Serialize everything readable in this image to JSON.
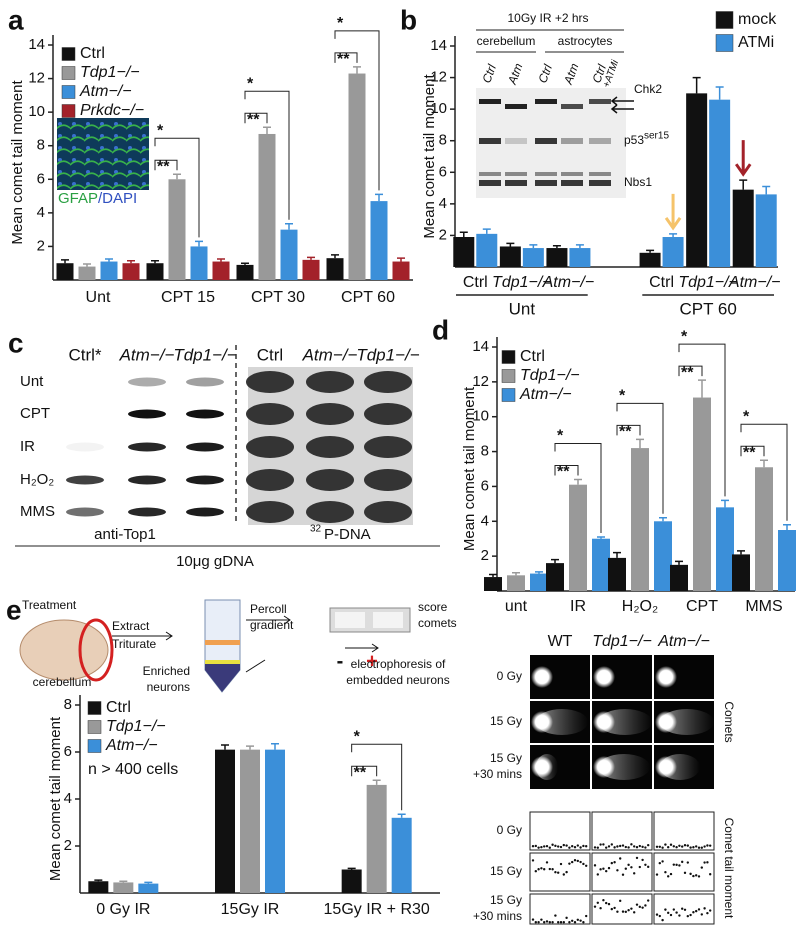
{
  "chart_data": [
    {
      "type": "bar",
      "label": "a",
      "y_label": "Mean comet tail moment",
      "categories": [
        "Unt",
        "CPT 15",
        "CPT 30",
        "CPT 60"
      ],
      "series": [
        {
          "name": "Ctrl",
          "color": "#111111",
          "values": [
            1.0,
            1.0,
            0.9,
            1.3
          ],
          "errors": [
            0.2,
            0.15,
            0.1,
            0.2
          ]
        },
        {
          "name": "Tdp1−/−",
          "color": "#999999",
          "values": [
            0.8,
            6.0,
            8.7,
            12.3
          ],
          "errors": [
            0.15,
            0.3,
            0.4,
            0.4
          ]
        },
        {
          "name": "Atm−/−",
          "color": "#3b8fd9",
          "values": [
            1.1,
            2.0,
            3.0,
            4.7
          ],
          "errors": [
            0.15,
            0.3,
            0.35,
            0.4
          ]
        },
        {
          "name": "Prkdc−/−",
          "color": "#a3222a",
          "values": [
            1.0,
            1.1,
            1.2,
            1.1
          ],
          "errors": [
            0.15,
            0.15,
            0.15,
            0.2
          ]
        }
      ],
      "ylim": [
        0,
        14
      ],
      "yticks": [
        2,
        4,
        6,
        8,
        10,
        12,
        14
      ],
      "significance": [
        null,
        [
          "*",
          "**"
        ],
        [
          "*",
          "**"
        ],
        [
          "*",
          "**"
        ]
      ],
      "inset_label": [
        "GFAP",
        "/DAPI"
      ]
    },
    {
      "type": "bar",
      "label": "b",
      "y_label": "Mean comet tail moment",
      "categories": [
        "Ctrl",
        "Tdp1−/−",
        "Atm−/−",
        "Ctrl",
        "Tdp1−/−",
        "Atm−/−"
      ],
      "group_labels": [
        "Unt",
        "CPT 60"
      ],
      "series": [
        {
          "name": "mock",
          "color": "#111111",
          "values": [
            1.9,
            1.3,
            1.2,
            0.9,
            11.0,
            4.9
          ],
          "errors": [
            0.3,
            0.2,
            0.15,
            0.15,
            1.0,
            0.6
          ]
        },
        {
          "name": "ATMi",
          "color": "#3b8fd9",
          "values": [
            2.1,
            1.2,
            1.2,
            1.9,
            10.6,
            4.6
          ],
          "errors": [
            0.3,
            0.2,
            0.2,
            0.2,
            0.8,
            0.5
          ]
        }
      ],
      "ylim": [
        0,
        14
      ],
      "yticks": [
        2,
        4,
        6,
        8,
        10,
        12,
        14
      ],
      "inset": {
        "title": "10Gy IR +2 hrs",
        "tissues": [
          "cerebellum",
          "astrocytes"
        ],
        "lanes": [
          "Ctrl",
          "Atm",
          "Ctrl",
          "Atm",
          "Ctrl"
        ],
        "lane_extra": "+ATMi",
        "proteins": [
          "Chk2",
          "p53",
          "Nbs1"
        ],
        "protein_sup": "ser15"
      }
    },
    {
      "type": "bar",
      "label": "d",
      "y_label": "Mean comet tail moment",
      "categories": [
        "unt",
        "IR",
        "H₂O₂",
        "CPT",
        "MMS"
      ],
      "series": [
        {
          "name": "Ctrl",
          "color": "#111111",
          "values": [
            0.8,
            1.6,
            1.9,
            1.5,
            2.1
          ],
          "errors": [
            0.15,
            0.2,
            0.3,
            0.2,
            0.2
          ]
        },
        {
          "name": "Tdp1−/−",
          "color": "#999999",
          "values": [
            0.9,
            6.1,
            8.2,
            11.1,
            7.1
          ],
          "errors": [
            0.15,
            0.3,
            0.5,
            1.0,
            0.4
          ]
        },
        {
          "name": "Atm−/−",
          "color": "#3b8fd9",
          "values": [
            1.0,
            3.0,
            4.0,
            4.8,
            3.5
          ],
          "errors": [
            0.1,
            0.1,
            0.2,
            0.4,
            0.3
          ]
        }
      ],
      "ylim": [
        0,
        14
      ],
      "yticks": [
        2,
        4,
        6,
        8,
        10,
        12,
        14
      ],
      "significance": [
        null,
        [
          "*",
          "**"
        ],
        [
          "*",
          "**"
        ],
        [
          "*",
          "**"
        ],
        [
          "*",
          "**"
        ]
      ]
    },
    {
      "type": "bar",
      "label": "e",
      "y_label": "Mean comet tail moment",
      "categories": [
        "0 Gy IR",
        "15Gy IR",
        "15Gy IR + R30"
      ],
      "series": [
        {
          "name": "Ctrl",
          "color": "#111111",
          "values": [
            0.5,
            6.1,
            1.0
          ],
          "errors": [
            0.05,
            0.2,
            0.05
          ]
        },
        {
          "name": "Tdp1−/−",
          "color": "#999999",
          "values": [
            0.45,
            6.1,
            4.6
          ],
          "errors": [
            0.05,
            0.15,
            0.2
          ]
        },
        {
          "name": "Atm−/−",
          "color": "#3b8fd9",
          "values": [
            0.4,
            6.1,
            3.2
          ],
          "errors": [
            0.05,
            0.25,
            0.15
          ]
        }
      ],
      "ylim": [
        0,
        8
      ],
      "yticks": [
        2,
        4,
        6,
        8
      ],
      "significance": [
        null,
        null,
        [
          "*",
          "**"
        ]
      ],
      "note": "n > 400 cells"
    }
  ],
  "panel_c": {
    "label": "c",
    "columns": [
      "Ctrl*",
      "Atm−/−",
      "Tdp1−/−",
      "Ctrl",
      "Atm−/−",
      "Tdp1−/−"
    ],
    "rows": [
      "Unt",
      "CPT",
      "IR",
      "H₂O₂",
      "MMS"
    ],
    "left_caption": "anti-Top1",
    "right_caption": [
      "32",
      "P-DNA"
    ],
    "footer": "10μg gDNA"
  },
  "panel_e_diagram": {
    "treatment": "Treatment",
    "tissue": "cerebellum",
    "extract": [
      "Extract",
      "Triturate"
    ],
    "gradient": [
      "Percoll",
      "gradient"
    ],
    "enriched": [
      "Enriched",
      "neurons"
    ],
    "score": [
      "score",
      "comets"
    ],
    "electrophoresis": [
      "electrophoresis of",
      "embedded neurons"
    ],
    "poles": [
      "-",
      "+"
    ]
  },
  "panel_e_comets": {
    "genotypes": [
      "WT",
      "Tdp1−/−",
      "Atm−/−"
    ],
    "comet_rows": [
      [
        "0 Gy"
      ],
      [
        "15 Gy"
      ],
      [
        "15 Gy",
        "+30 mins"
      ]
    ],
    "comet_side": "Comets",
    "moment_rows": [
      [
        "0 Gy"
      ],
      [
        "15 Gy"
      ],
      [
        "15 Gy",
        "+30 mins"
      ]
    ],
    "moment_side": "Comet tail moment"
  }
}
